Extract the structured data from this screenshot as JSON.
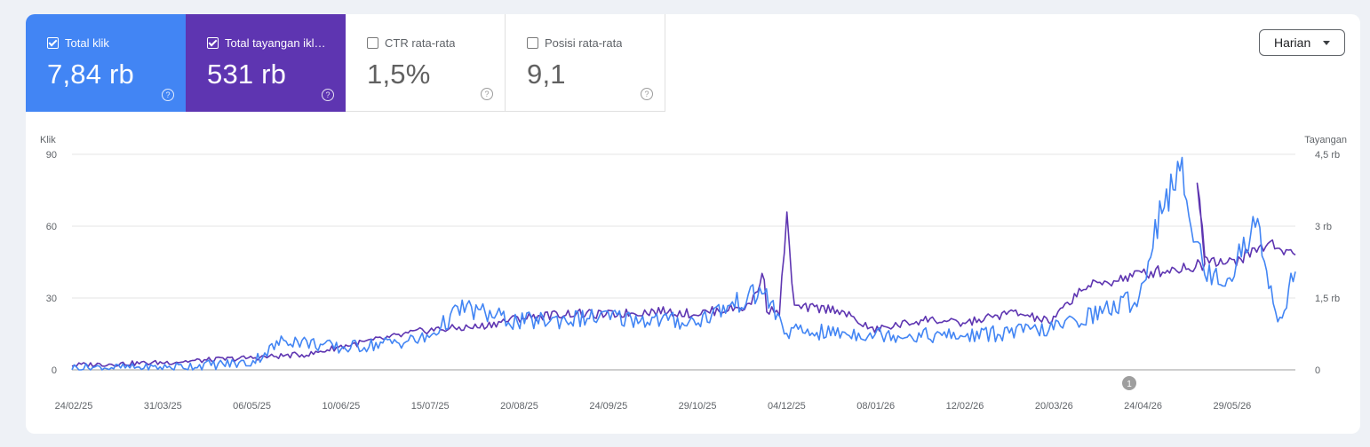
{
  "metrics": {
    "clicks": {
      "label": "Total klik",
      "value": "7,84 rb",
      "checked": true,
      "color": "#4285f4"
    },
    "impressions": {
      "label": "Total tayangan ikl…",
      "value": "531 rb",
      "checked": true,
      "color": "#5e35b1"
    },
    "ctr": {
      "label": "CTR rata-rata",
      "value": "1,5%",
      "checked": false
    },
    "position": {
      "label": "Posisi rata-rata",
      "value": "9,1",
      "checked": false
    },
    "help_glyph": "?"
  },
  "period_select": {
    "selected": "Harian"
  },
  "annotation": {
    "label": "1"
  },
  "chart_data": {
    "type": "line",
    "left_axis": {
      "label": "Klik",
      "ticks": [
        "90",
        "60",
        "30",
        "0"
      ],
      "range": [
        0,
        90
      ]
    },
    "right_axis": {
      "label": "Tayangan",
      "ticks": [
        "4,5 rb",
        "3 rb",
        "1,5 rb",
        "0"
      ],
      "range": [
        0,
        4500
      ]
    },
    "x_tick_labels": [
      "24/02/25",
      "31/03/25",
      "06/05/25",
      "10/06/25",
      "15/07/25",
      "20/08/25",
      "24/09/25",
      "29/10/25",
      "04/12/25",
      "08/01/26",
      "12/02/26",
      "20/03/26",
      "24/04/26",
      "29/05/26"
    ],
    "x_range": [
      "24/02/25",
      "25/06/26"
    ],
    "grid": true,
    "series": [
      {
        "name": "Total tayangan iklan",
        "axis": "right",
        "color": "#5e35b1",
        "points": [
          [
            "24/02/25",
            100
          ],
          [
            "31/03/25",
            150
          ],
          [
            "06/05/25",
            250
          ],
          [
            "30/05/25",
            330
          ],
          [
            "10/06/25",
            480
          ],
          [
            "01/07/25",
            680
          ],
          [
            "15/07/25",
            830
          ],
          [
            "05/08/25",
            900
          ],
          [
            "20/08/25",
            1080
          ],
          [
            "10/09/25",
            1180
          ],
          [
            "24/09/25",
            1150
          ],
          [
            "15/10/25",
            1230
          ],
          [
            "29/10/25",
            1170
          ],
          [
            "20/11/25",
            1330
          ],
          [
            "26/11/25",
            2000
          ],
          [
            "27/11/25",
            1270
          ],
          [
            "02/12/25",
            1200
          ],
          [
            "05/12/25",
            3150
          ],
          [
            "08/12/25",
            1300
          ],
          [
            "25/12/25",
            1270
          ],
          [
            "08/01/26",
            830
          ],
          [
            "30/01/26",
            1060
          ],
          [
            "12/02/26",
            960
          ],
          [
            "05/03/26",
            1200
          ],
          [
            "20/03/26",
            1000
          ],
          [
            "01/04/26",
            1700
          ],
          [
            "24/04/26",
            2000
          ],
          [
            "20/05/26",
            2200
          ],
          [
            "17/05/26",
            4080
          ],
          [
            "20/05/26",
            2400
          ],
          [
            "29/05/26",
            2200
          ],
          [
            "15/06/26",
            2650
          ],
          [
            "25/06/26",
            2400
          ]
        ]
      },
      {
        "name": "Total klik",
        "axis": "left",
        "color": "#4285f4",
        "points": [
          [
            "24/02/25",
            1
          ],
          [
            "31/03/25",
            1
          ],
          [
            "06/05/25",
            3
          ],
          [
            "20/05/25",
            13
          ],
          [
            "10/06/25",
            9
          ],
          [
            "15/07/25",
            13
          ],
          [
            "29/07/25",
            26
          ],
          [
            "20/08/25",
            20
          ],
          [
            "24/09/25",
            22
          ],
          [
            "29/10/25",
            20
          ],
          [
            "26/11/25",
            33
          ],
          [
            "04/12/25",
            16
          ],
          [
            "08/01/26",
            15
          ],
          [
            "12/02/26",
            14
          ],
          [
            "20/03/26",
            17
          ],
          [
            "24/04/26",
            30
          ],
          [
            "03/05/26",
            70
          ],
          [
            "11/05/26",
            81
          ],
          [
            "20/05/26",
            40
          ],
          [
            "29/05/26",
            38
          ],
          [
            "10/06/26",
            62
          ],
          [
            "18/06/26",
            19
          ],
          [
            "25/06/26",
            41
          ]
        ]
      }
    ]
  }
}
